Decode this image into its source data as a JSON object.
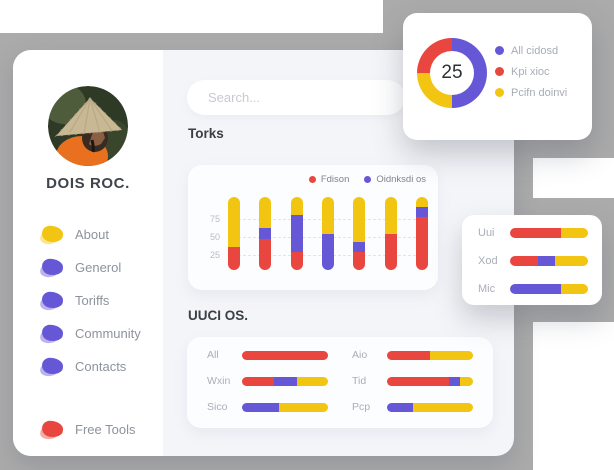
{
  "colors": {
    "red": "#e8463f",
    "yellow": "#f1c512",
    "purple": "#6657d6",
    "gray_backdrop": "#ababab"
  },
  "sidebar": {
    "profile_name": "DOIS ROC.",
    "menu": [
      {
        "label": "About",
        "color": "yellow"
      },
      {
        "label": "Generol",
        "color": "purple"
      },
      {
        "label": "Toriffs",
        "color": "purple"
      },
      {
        "label": "Community",
        "color": "purple"
      },
      {
        "label": "Contacts",
        "color": "purple"
      }
    ],
    "footer_menu": [
      {
        "label": "Free Tools",
        "color": "red"
      }
    ]
  },
  "search": {
    "placeholder": "Search..."
  },
  "donut_card": {
    "center_value": "25",
    "ring": [
      {
        "color": "purple",
        "pct": 50
      },
      {
        "color": "yellow",
        "pct": 25
      },
      {
        "color": "red",
        "pct": 25
      }
    ],
    "legend": [
      {
        "label": "All cidosd",
        "color": "purple"
      },
      {
        "label": "Kpi xioc",
        "color": "red"
      },
      {
        "label": "Pcifn doinvi",
        "color": "yellow"
      }
    ]
  },
  "torks_chart": {
    "title": "Torks",
    "type": "stacked-bar",
    "legend": [
      {
        "label": "Fdison",
        "color": "red"
      },
      {
        "label": "Oidnksdi os",
        "color": "purple"
      }
    ],
    "y_ticks": [
      75,
      50,
      25
    ],
    "bars": [
      [
        {
          "color": "red",
          "pct": 31
        },
        {
          "color": "yellow",
          "pct": 69
        }
      ],
      [
        {
          "color": "red",
          "pct": 43
        },
        {
          "color": "purple",
          "pct": 15
        },
        {
          "color": "yellow",
          "pct": 42
        }
      ],
      [
        {
          "color": "red",
          "pct": 24
        },
        {
          "color": "purple",
          "pct": 52
        },
        {
          "color": "yellow",
          "pct": 24
        }
      ],
      [
        {
          "color": "purple",
          "pct": 49
        },
        {
          "color": "yellow",
          "pct": 51
        }
      ],
      [
        {
          "color": "red",
          "pct": 24
        },
        {
          "color": "purple",
          "pct": 14
        },
        {
          "color": "yellow",
          "pct": 62
        }
      ],
      [
        {
          "color": "red",
          "pct": 49
        },
        {
          "color": "yellow",
          "pct": 51
        }
      ],
      [
        {
          "color": "red",
          "pct": 73
        },
        {
          "color": "purple",
          "pct": 14
        },
        {
          "color": "yellow",
          "pct": 13
        }
      ]
    ]
  },
  "uuci_chart": {
    "title": "UUCI OS.",
    "type": "stacked-bar-horizontal",
    "columns": [
      [
        {
          "label": "All",
          "segments": [
            {
              "color": "red",
              "pct": 100
            }
          ]
        },
        {
          "label": "Wxin",
          "segments": [
            {
              "color": "red",
              "pct": 37
            },
            {
              "color": "purple",
              "pct": 27
            },
            {
              "color": "yellow",
              "pct": 36
            }
          ]
        },
        {
          "label": "Sico",
          "segments": [
            {
              "color": "purple",
              "pct": 43
            },
            {
              "color": "yellow",
              "pct": 57
            }
          ]
        }
      ],
      [
        {
          "label": "Aio",
          "segments": [
            {
              "color": "red",
              "pct": 50
            },
            {
              "color": "yellow",
              "pct": 50
            }
          ]
        },
        {
          "label": "Tid",
          "segments": [
            {
              "color": "red",
              "pct": 72
            },
            {
              "color": "purple",
              "pct": 13
            },
            {
              "color": "yellow",
              "pct": 15
            }
          ]
        },
        {
          "label": "Pcp",
          "segments": [
            {
              "color": "purple",
              "pct": 30
            },
            {
              "color": "yellow",
              "pct": 70
            }
          ]
        }
      ]
    ]
  },
  "side_panel": {
    "rows": [
      {
        "label": "Uui",
        "segments": [
          {
            "color": "red",
            "pct": 65
          },
          {
            "color": "yellow",
            "pct": 35
          }
        ]
      },
      {
        "label": "Xod",
        "segments": [
          {
            "color": "red",
            "pct": 36
          },
          {
            "color": "purple",
            "pct": 22
          },
          {
            "color": "yellow",
            "pct": 42
          }
        ]
      },
      {
        "label": "Mic",
        "segments": [
          {
            "color": "purple",
            "pct": 65
          },
          {
            "color": "yellow",
            "pct": 35
          }
        ]
      }
    ]
  }
}
